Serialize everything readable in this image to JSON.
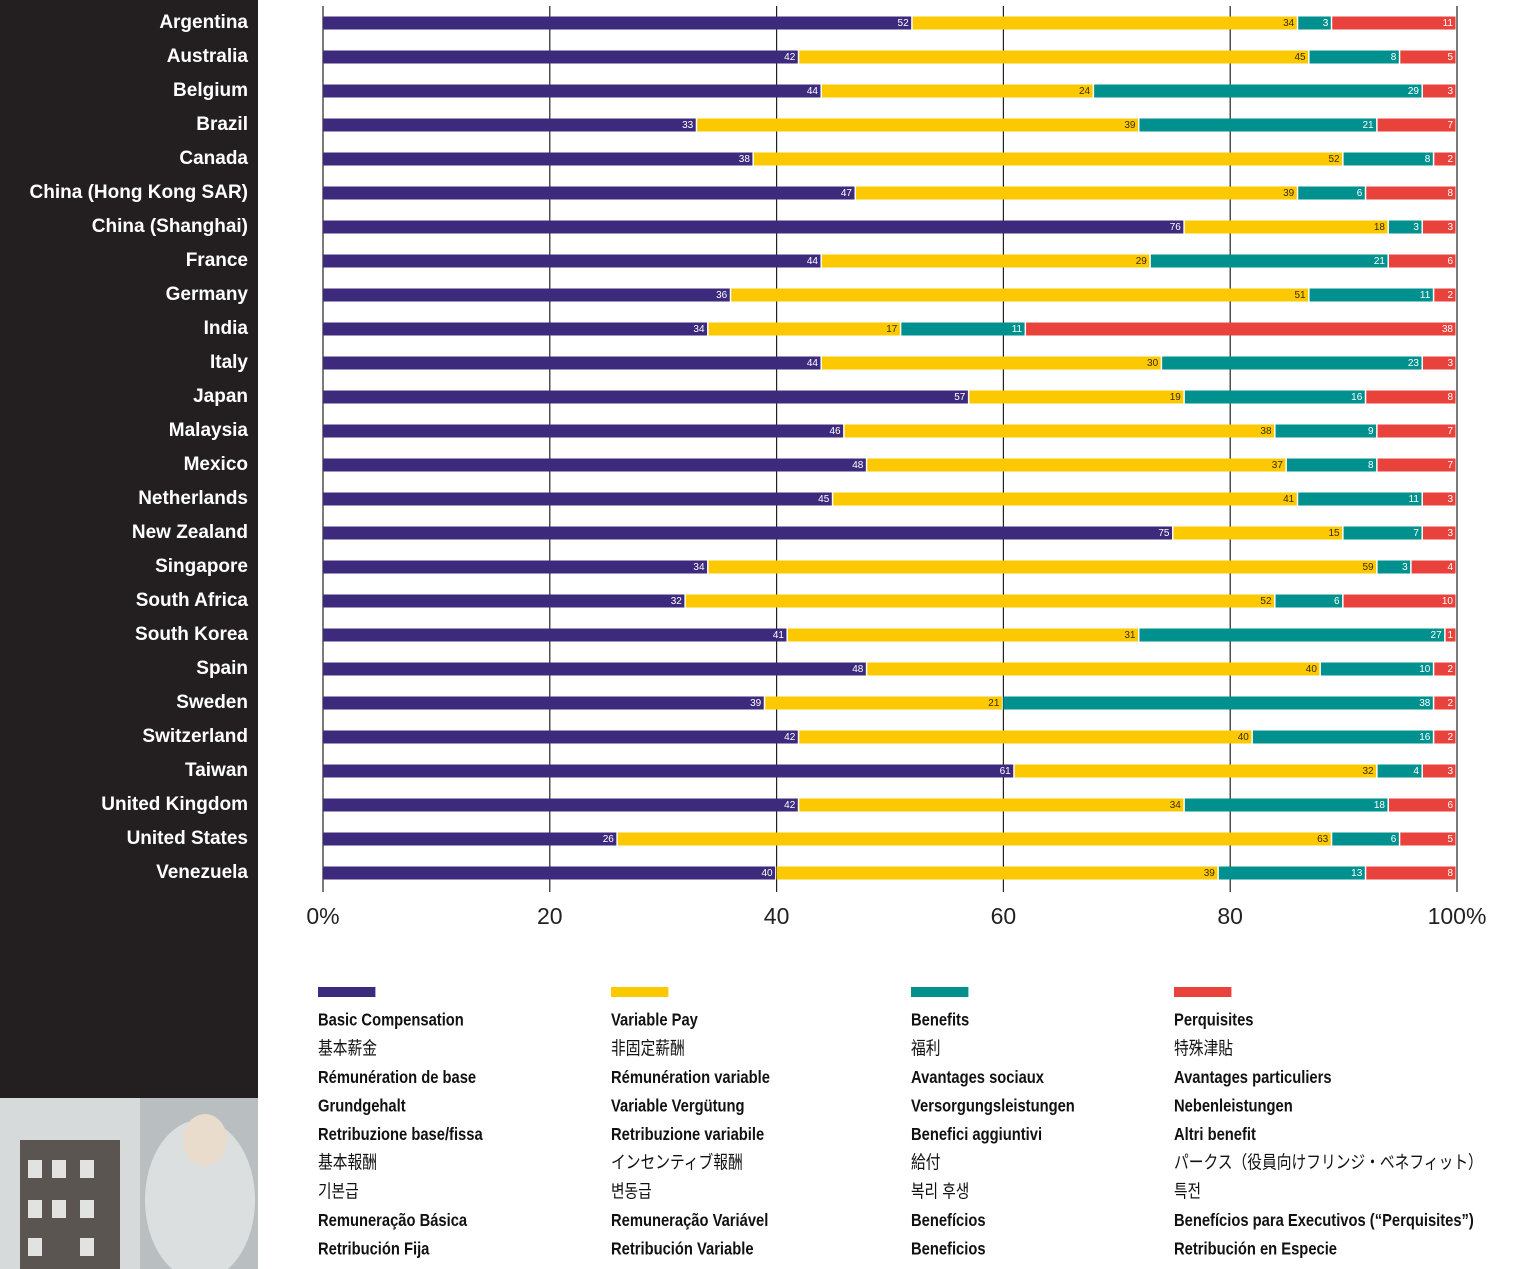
{
  "chart_data": {
    "type": "bar",
    "orientation": "horizontal",
    "stacked": true,
    "categories": [
      "Argentina",
      "Australia",
      "Belgium",
      "Brazil",
      "Canada",
      "China (Hong Kong SAR)",
      "China (Shanghai)",
      "France",
      "Germany",
      "India",
      "Italy",
      "Japan",
      "Malaysia",
      "Mexico",
      "Netherlands",
      "New Zealand",
      "Singapore",
      "South Africa",
      "South Korea",
      "Spain",
      "Sweden",
      "Switzerland",
      "Taiwan",
      "United Kingdom",
      "United States",
      "Venezuela"
    ],
    "series": [
      {
        "name": "Basic Compensation",
        "color": "#3d2a7c",
        "values": [
          52,
          42,
          44,
          33,
          38,
          47,
          76,
          44,
          36,
          34,
          44,
          57,
          46,
          48,
          45,
          75,
          34,
          32,
          41,
          48,
          39,
          42,
          61,
          42,
          26,
          40
        ],
        "translations": [
          "基本薪金",
          "Rémunération de base",
          "Grundgehalt",
          "Retribuzione base/fissa",
          "基本報酬",
          "기본급",
          "Remuneração Básica",
          "Retribución Fija"
        ]
      },
      {
        "name": "Variable Pay",
        "color": "#fcc900",
        "values": [
          34,
          45,
          24,
          39,
          52,
          39,
          18,
          29,
          51,
          17,
          30,
          19,
          38,
          37,
          41,
          15,
          59,
          52,
          31,
          40,
          21,
          40,
          32,
          34,
          63,
          39
        ],
        "translations": [
          "非固定薪酬",
          "Rémunération variable",
          "Variable Vergütung",
          "Retribuzione variabile",
          "インセンティブ報酬",
          "변동급",
          "Remuneração Variável",
          "Retribución Variable"
        ]
      },
      {
        "name": "Benefits",
        "color": "#00918f",
        "values": [
          3,
          8,
          29,
          21,
          8,
          6,
          3,
          21,
          11,
          11,
          23,
          16,
          9,
          8,
          11,
          7,
          3,
          6,
          27,
          10,
          38,
          16,
          4,
          18,
          6,
          13
        ],
        "translations": [
          "福利",
          "Avantages sociaux",
          "Versorgungsleistungen",
          "Benefici aggiuntivi",
          "給付",
          "복리 후생",
          "Benefícios",
          "Beneficios"
        ]
      },
      {
        "name": "Perquisites",
        "color": "#e9413b",
        "values": [
          11,
          5,
          3,
          7,
          2,
          8,
          3,
          6,
          2,
          38,
          3,
          8,
          7,
          7,
          3,
          3,
          4,
          10,
          1,
          2,
          2,
          2,
          3,
          6,
          5,
          8
        ],
        "translations": [
          "特殊津貼",
          "Avantages particuliers",
          "Nebenleistungen",
          "Altri benefit",
          "パークス（役員向けフリンジ・ベネフィット）",
          "특전",
          "Benefícios para Executivos (“Perquisites”)",
          "Retribución en Especie"
        ]
      }
    ],
    "xlim": [
      0,
      100
    ],
    "xticks": [
      {
        "value": 0,
        "label": "0%"
      },
      20,
      40,
      60,
      80,
      {
        "value": 100,
        "label": "100%"
      }
    ]
  }
}
